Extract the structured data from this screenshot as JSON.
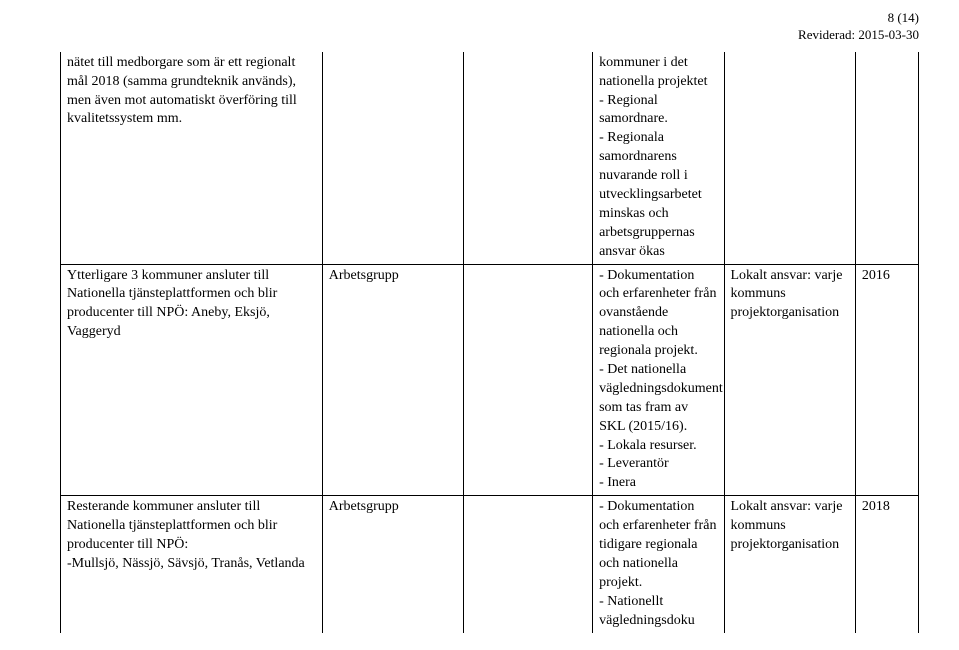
{
  "header": {
    "page_indicator": "8 (14)",
    "revised_label": "Reviderad: 2015-03-30"
  },
  "rows": {
    "r1": {
      "col1": "nätet till medborgare som är ett regionalt mål 2018 (samma grundteknik används), men även mot automatiskt överföring till kvalitetssystem mm.",
      "col2": "",
      "col3": "",
      "col4": "kommuner i det nationella projektet\n- Regional samordnare.\n- Regionala samordnarens nuvarande roll i utvecklingsarbetet minskas och arbetsgruppernas ansvar ökas",
      "col5": "",
      "col6": ""
    },
    "r2": {
      "col1": "Ytterligare 3 kommuner ansluter till Nationella tjänsteplattformen och blir producenter till NPÖ: Aneby, Eksjö, Vaggeryd",
      "col2": "Arbetsgrupp",
      "col3": "",
      "col4": "- Dokumentation och erfarenheter från ovanstående nationella och regionala projekt.\n- Det nationella vägledningsdokument som tas fram av SKL (2015/16).\n- Lokala resurser.\n- Leverantör\n- Inera",
      "col5": "Lokalt ansvar: varje kommuns projektorganisation",
      "col6": "2016"
    },
    "r3": {
      "col1": "Resterande kommuner ansluter till Nationella tjänsteplattformen och blir producenter till NPÖ:\n-Mullsjö, Nässjö, Sävsjö, Tranås, Vetlanda",
      "col2": "Arbetsgrupp",
      "col3": "",
      "col4": "- Dokumentation och erfarenheter från tidigare regionala och nationella projekt.\n- Nationellt vägledningsdoku",
      "col5": "Lokalt ansvar: varje kommuns projektorganisation",
      "col6": "2018"
    }
  }
}
